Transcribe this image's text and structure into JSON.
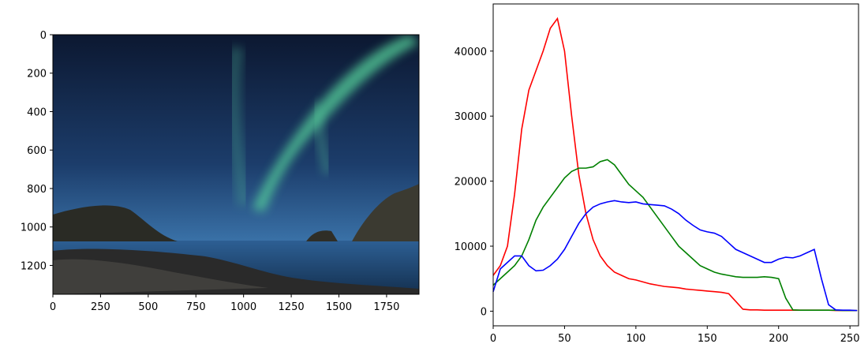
{
  "chart_data": [
    {
      "type": "image",
      "xlim": [
        0,
        1920
      ],
      "ylim": [
        1350,
        0
      ],
      "xticks": [
        0,
        250,
        500,
        750,
        1000,
        1250,
        1500,
        1750
      ],
      "yticks": [
        0,
        200,
        400,
        600,
        800,
        1000,
        1200
      ]
    },
    {
      "type": "line",
      "x": [
        0,
        5,
        10,
        15,
        20,
        25,
        30,
        35,
        40,
        45,
        50,
        55,
        60,
        65,
        70,
        75,
        80,
        85,
        90,
        95,
        100,
        105,
        110,
        115,
        120,
        125,
        130,
        135,
        140,
        145,
        150,
        155,
        160,
        165,
        170,
        175,
        180,
        185,
        190,
        195,
        200,
        205,
        210,
        215,
        220,
        225,
        230,
        235,
        240,
        245,
        250,
        255
      ],
      "series": [
        {
          "color": "#ff0000",
          "values": [
            5500,
            7000,
            10000,
            18000,
            28000,
            34000,
            37000,
            40000,
            43500,
            45000,
            40000,
            30000,
            21000,
            15000,
            11000,
            8500,
            7000,
            6000,
            5500,
            5000,
            4800,
            4500,
            4200,
            4000,
            3800,
            3700,
            3600,
            3400,
            3300,
            3200,
            3100,
            3000,
            2900,
            2700,
            1500,
            300,
            200,
            200,
            150,
            150,
            150,
            150,
            150,
            150,
            150,
            150,
            150,
            150,
            100,
            100,
            100,
            100
          ]
        },
        {
          "color": "#008000",
          "values": [
            4000,
            5000,
            6000,
            7000,
            8500,
            11000,
            14000,
            16000,
            17500,
            19000,
            20500,
            21500,
            22000,
            22000,
            22200,
            23000,
            23300,
            22500,
            21000,
            19500,
            18500,
            17500,
            16000,
            14500,
            13000,
            11500,
            10000,
            9000,
            8000,
            7000,
            6500,
            6000,
            5700,
            5500,
            5300,
            5200,
            5200,
            5200,
            5300,
            5200,
            5000,
            2000,
            200,
            150,
            150,
            150,
            150,
            150,
            150,
            100,
            100,
            100
          ]
        },
        {
          "color": "#0000ff",
          "values": [
            3000,
            6500,
            7500,
            8500,
            8500,
            7000,
            6200,
            6300,
            7000,
            8000,
            9500,
            11500,
            13500,
            15000,
            16000,
            16500,
            16800,
            17000,
            16800,
            16700,
            16800,
            16500,
            16400,
            16300,
            16200,
            15700,
            15000,
            14000,
            13200,
            12500,
            12200,
            12000,
            11500,
            10500,
            9500,
            9000,
            8500,
            8000,
            7500,
            7500,
            8000,
            8300,
            8200,
            8500,
            9000,
            9500,
            5000,
            1000,
            200,
            150,
            150,
            100
          ]
        }
      ],
      "xlim": [
        0,
        256
      ],
      "ylim": [
        -2250,
        47250
      ],
      "xticks": [
        0,
        50,
        100,
        150,
        200,
        250
      ],
      "yticks": [
        0,
        10000,
        20000,
        30000,
        40000
      ]
    }
  ]
}
